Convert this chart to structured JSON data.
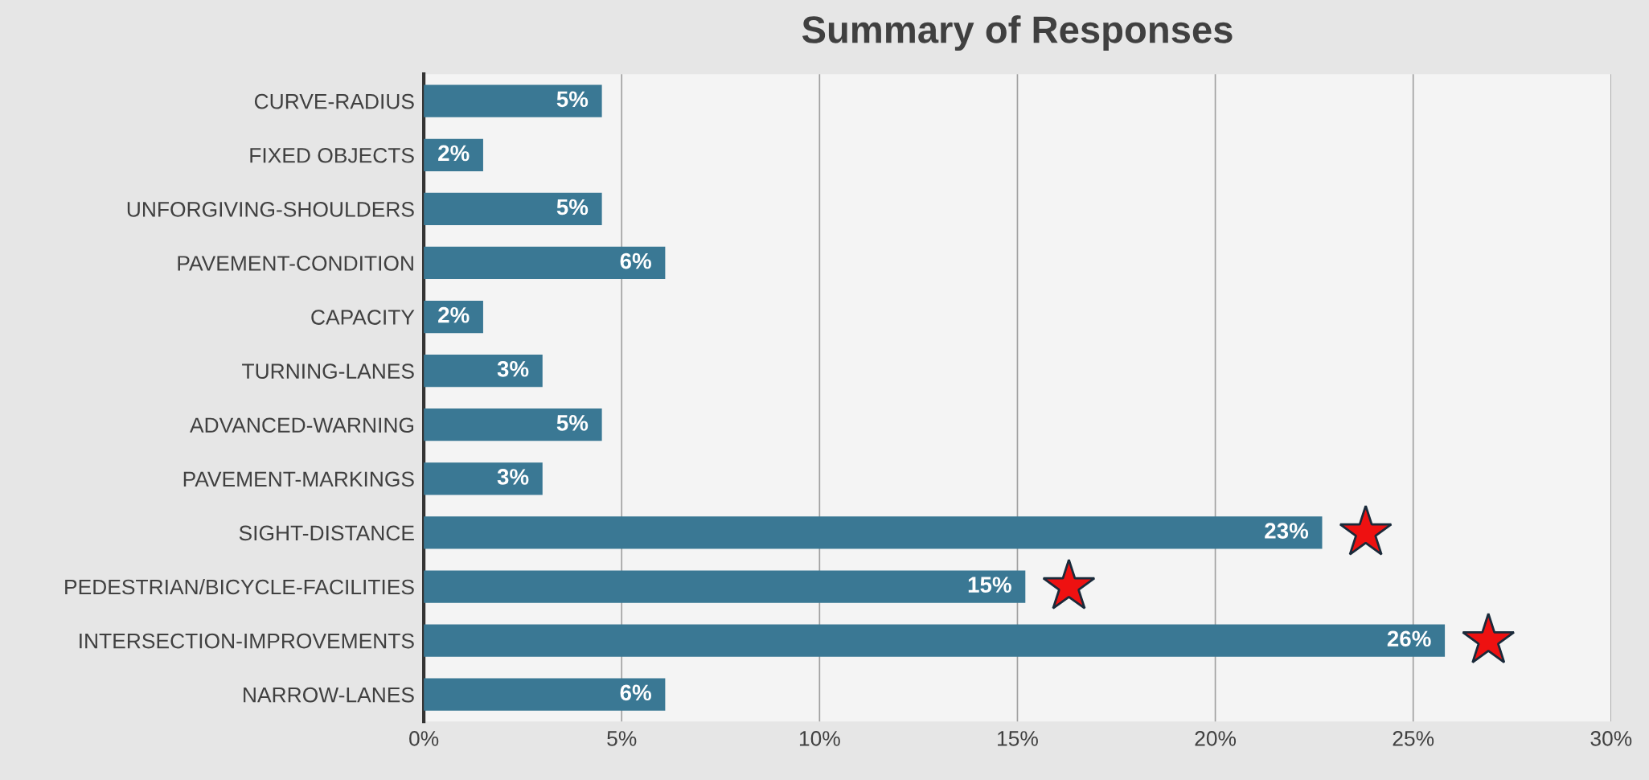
{
  "chart_data": {
    "type": "bar",
    "orientation": "horizontal",
    "title": "Summary of Responses",
    "categories": [
      "CURVE-RADIUS",
      "FIXED OBJECTS",
      "UNFORGIVING-SHOULDERS",
      "PAVEMENT-CONDITION",
      "CAPACITY",
      "TURNING-LANES",
      "ADVANCED-WARNING",
      "PAVEMENT-MARKINGS",
      "SIGHT-DISTANCE",
      "PEDESTRIAN/BICYCLE-FACILITIES",
      "INTERSECTION-IMPROVEMENTS",
      "NARROW-LANES"
    ],
    "values": [
      4.5,
      1.5,
      4.5,
      6.1,
      1.5,
      3.0,
      4.5,
      3.0,
      22.7,
      15.2,
      25.8,
      6.1
    ],
    "value_labels": [
      "5%",
      "2%",
      "5%",
      "6%",
      "2%",
      "3%",
      "5%",
      "3%",
      "23%",
      "15%",
      "26%",
      "6%"
    ],
    "color": "#3a7894",
    "xlim": [
      0,
      30
    ],
    "xticks": [
      {
        "value": 0,
        "label": "0%"
      },
      {
        "value": 5,
        "label": "5%"
      },
      {
        "value": 10,
        "label": "10%"
      },
      {
        "value": 15,
        "label": "15%"
      },
      {
        "value": 20,
        "label": "20%"
      },
      {
        "value": 25,
        "label": "25%"
      },
      {
        "value": 30,
        "label": "30%"
      }
    ],
    "grid": "x",
    "legend": false
  }
}
